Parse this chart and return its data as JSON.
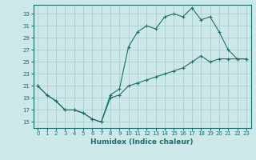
{
  "xlabel": "Humidex (Indice chaleur)",
  "ylabel": "",
  "bg_color": "#cde8e8",
  "line_color": "#1a6e6e",
  "grid_color": "#aacece",
  "xlim": [
    -0.5,
    23.5
  ],
  "ylim": [
    14.0,
    34.5
  ],
  "xticks": [
    0,
    1,
    2,
    3,
    4,
    5,
    6,
    7,
    8,
    9,
    10,
    11,
    12,
    13,
    14,
    15,
    16,
    17,
    18,
    19,
    20,
    21,
    22,
    23
  ],
  "yticks": [
    15,
    17,
    19,
    21,
    23,
    25,
    27,
    29,
    31,
    33
  ],
  "line1_x": [
    0,
    1,
    2,
    3,
    4,
    5,
    6,
    7,
    8,
    9,
    10,
    11,
    12,
    13,
    14,
    15,
    16,
    17,
    18,
    19,
    20,
    21,
    22,
    23
  ],
  "line1_y": [
    21.0,
    19.5,
    18.5,
    17.0,
    17.0,
    16.5,
    15.5,
    15.0,
    19.5,
    20.5,
    27.5,
    30.0,
    31.0,
    30.5,
    32.5,
    33.0,
    32.5,
    34.0,
    32.0,
    32.5,
    30.0,
    27.0,
    25.5,
    25.5
  ],
  "line2_x": [
    0,
    1,
    2,
    3,
    4,
    5,
    6,
    7,
    8,
    9,
    10,
    11,
    12,
    13,
    14,
    15,
    16,
    17,
    18,
    19,
    20,
    21,
    22,
    23
  ],
  "line2_y": [
    21.0,
    19.5,
    18.5,
    17.0,
    17.0,
    16.5,
    15.5,
    15.0,
    19.0,
    19.5,
    21.0,
    21.5,
    22.0,
    22.5,
    23.0,
    23.5,
    24.0,
    25.0,
    26.0,
    25.0,
    25.5,
    25.5,
    25.5,
    25.5
  ],
  "font_size_ticks": 5.0,
  "font_size_xlabel": 6.5
}
